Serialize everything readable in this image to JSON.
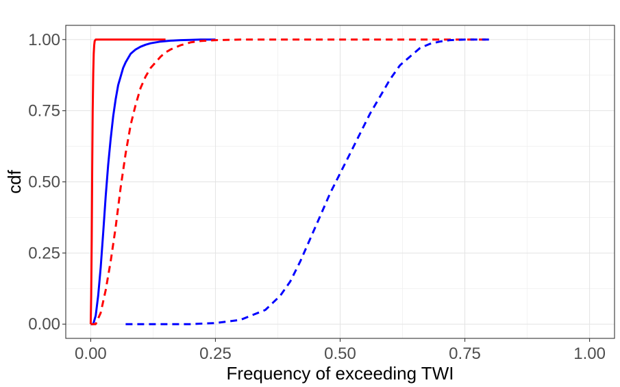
{
  "chart_data": {
    "type": "line",
    "title": "",
    "xlabel": "Frequency of exceeding TWI",
    "ylabel": "cdf",
    "xlim": [
      -0.05,
      1.05
    ],
    "ylim": [
      -0.05,
      1.05
    ],
    "xticks": [
      0.0,
      0.25,
      0.5,
      0.75,
      1.0
    ],
    "xtick_labels": [
      "0.00",
      "0.25",
      "0.50",
      "0.75",
      "1.00"
    ],
    "yticks": [
      0.0,
      0.25,
      0.5,
      0.75,
      1.0
    ],
    "ytick_labels": [
      "0.00",
      "0.25",
      "0.50",
      "0.75",
      "1.00"
    ],
    "grid": true,
    "legend": "none",
    "series": [
      {
        "color": "#ff0000",
        "dash": "solid",
        "x": [
          0.0,
          0.001,
          0.002,
          0.003,
          0.004,
          0.005,
          0.006,
          0.007,
          0.008,
          0.01,
          0.015,
          0.02,
          0.05,
          0.1,
          0.15
        ],
        "y": [
          0.0,
          0.1,
          0.3,
          0.55,
          0.75,
          0.88,
          0.95,
          0.98,
          0.995,
          1.0,
          1.0,
          1.0,
          1.0,
          1.0,
          1.0
        ]
      },
      {
        "color": "#0000ff",
        "dash": "solid",
        "x": [
          0.0,
          0.005,
          0.01,
          0.015,
          0.02,
          0.025,
          0.03,
          0.035,
          0.04,
          0.045,
          0.05,
          0.055,
          0.06,
          0.065,
          0.07,
          0.08,
          0.09,
          0.1,
          0.11,
          0.12,
          0.14,
          0.16,
          0.18,
          0.2,
          0.22,
          0.25
        ],
        "y": [
          0.0,
          0.0,
          0.03,
          0.1,
          0.2,
          0.32,
          0.45,
          0.56,
          0.65,
          0.73,
          0.79,
          0.84,
          0.87,
          0.9,
          0.92,
          0.95,
          0.965,
          0.975,
          0.982,
          0.987,
          0.993,
          0.996,
          0.998,
          0.999,
          1.0,
          1.0
        ]
      },
      {
        "color": "#ff0000",
        "dash": "dashed",
        "x": [
          0.0,
          0.01,
          0.02,
          0.03,
          0.04,
          0.05,
          0.06,
          0.07,
          0.08,
          0.09,
          0.1,
          0.11,
          0.12,
          0.13,
          0.14,
          0.15,
          0.16,
          0.18,
          0.2,
          0.22,
          0.25,
          0.3,
          0.4,
          0.5,
          0.6,
          0.7,
          0.8
        ],
        "y": [
          0.0,
          0.0,
          0.04,
          0.12,
          0.22,
          0.34,
          0.48,
          0.6,
          0.7,
          0.77,
          0.83,
          0.87,
          0.9,
          0.92,
          0.94,
          0.955,
          0.965,
          0.98,
          0.99,
          0.995,
          0.998,
          1.0,
          1.0,
          1.0,
          1.0,
          1.0,
          1.0
        ]
      },
      {
        "color": "#0000ff",
        "dash": "dashed",
        "x": [
          0.07,
          0.1,
          0.15,
          0.2,
          0.25,
          0.3,
          0.35,
          0.38,
          0.4,
          0.42,
          0.44,
          0.46,
          0.48,
          0.5,
          0.52,
          0.54,
          0.56,
          0.58,
          0.6,
          0.62,
          0.64,
          0.66,
          0.68,
          0.7,
          0.72,
          0.75,
          0.8
        ],
        "y": [
          0.0,
          0.0,
          0.0,
          0.0,
          0.004,
          0.015,
          0.05,
          0.1,
          0.15,
          0.22,
          0.3,
          0.38,
          0.46,
          0.53,
          0.6,
          0.67,
          0.74,
          0.8,
          0.86,
          0.91,
          0.94,
          0.97,
          0.985,
          0.993,
          0.998,
          1.0,
          1.0
        ]
      }
    ]
  }
}
